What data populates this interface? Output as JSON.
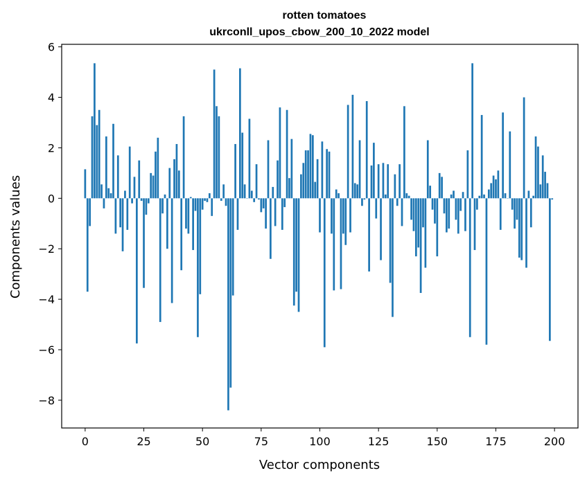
{
  "chart_data": {
    "type": "bar",
    "title": "rotten tomatoes",
    "subtitle": "ukrconll_upos_cbow_200_10_2022 model",
    "xlabel": "Vector components",
    "ylabel": "Components values",
    "xlim": [
      -10,
      210
    ],
    "ylim": [
      -9.1,
      6.1
    ],
    "xticks": [
      0,
      25,
      50,
      75,
      100,
      125,
      150,
      175,
      200
    ],
    "xtick_labels": [
      "0",
      "25",
      "50",
      "75",
      "100",
      "125",
      "150",
      "175",
      "200"
    ],
    "yticks": [
      -8,
      -6,
      -4,
      -2,
      0,
      2,
      4,
      6
    ],
    "ytick_labels": [
      "−8",
      "−6",
      "−4",
      "−2",
      "0",
      "2",
      "4",
      "6"
    ],
    "bar_color": "#1f77b4",
    "grid": false,
    "legend": "none",
    "x": [
      0,
      1,
      2,
      3,
      4,
      5,
      6,
      7,
      8,
      9,
      10,
      11,
      12,
      13,
      14,
      15,
      16,
      17,
      18,
      19,
      20,
      21,
      22,
      23,
      24,
      25,
      26,
      27,
      28,
      29,
      30,
      31,
      32,
      33,
      34,
      35,
      36,
      37,
      38,
      39,
      40,
      41,
      42,
      43,
      44,
      45,
      46,
      47,
      48,
      49,
      50,
      51,
      52,
      53,
      54,
      55,
      56,
      57,
      58,
      59,
      60,
      61,
      62,
      63,
      64,
      65,
      66,
      67,
      68,
      69,
      70,
      71,
      72,
      73,
      74,
      75,
      76,
      77,
      78,
      79,
      80,
      81,
      82,
      83,
      84,
      85,
      86,
      87,
      88,
      89,
      90,
      91,
      92,
      93,
      94,
      95,
      96,
      97,
      98,
      99,
      100,
      101,
      102,
      103,
      104,
      105,
      106,
      107,
      108,
      109,
      110,
      111,
      112,
      113,
      114,
      115,
      116,
      117,
      118,
      119,
      120,
      121,
      122,
      123,
      124,
      125,
      126,
      127,
      128,
      129,
      130,
      131,
      132,
      133,
      134,
      135,
      136,
      137,
      138,
      139,
      140,
      141,
      142,
      143,
      144,
      145,
      146,
      147,
      148,
      149,
      150,
      151,
      152,
      153,
      154,
      155,
      156,
      157,
      158,
      159,
      160,
      161,
      162,
      163,
      164,
      165,
      166,
      167,
      168,
      169,
      170,
      171,
      172,
      173,
      174,
      175,
      176,
      177,
      178,
      179,
      180,
      181,
      182,
      183,
      184,
      185,
      186,
      187,
      188,
      189,
      190,
      191,
      192,
      193,
      194,
      195,
      196,
      197,
      198,
      199
    ],
    "values": [
      1.15,
      -3.7,
      -1.1,
      3.25,
      5.35,
      2.9,
      3.5,
      0.55,
      -0.4,
      2.45,
      0.4,
      0.2,
      2.95,
      -1.4,
      1.7,
      -1.15,
      -2.1,
      0.3,
      -1.25,
      2.05,
      -0.2,
      0.85,
      -5.75,
      1.5,
      -0.1,
      -3.55,
      -0.65,
      -0.2,
      1.0,
      0.9,
      1.85,
      2.4,
      -4.9,
      -0.6,
      0.15,
      -2.0,
      1.2,
      -4.15,
      1.55,
      2.15,
      1.1,
      -2.85,
      3.25,
      -1.2,
      -1.4,
      0.05,
      -2.05,
      -0.5,
      -5.5,
      -3.8,
      -0.45,
      -0.1,
      -0.15,
      0.2,
      -0.7,
      5.1,
      3.65,
      3.25,
      -0.1,
      0.55,
      -0.3,
      -8.4,
      -7.5,
      -3.85,
      2.15,
      -1.25,
      5.15,
      2.6,
      0.55,
      0.0,
      3.15,
      0.3,
      -0.15,
      1.35,
      -0.05,
      -0.55,
      -0.4,
      -1.2,
      2.3,
      -2.4,
      0.45,
      -1.1,
      1.5,
      3.6,
      -1.25,
      -0.35,
      3.5,
      0.8,
      2.35,
      -4.25,
      -3.7,
      -4.5,
      0.95,
      1.4,
      1.9,
      1.9,
      2.55,
      2.5,
      0.65,
      1.55,
      -1.35,
      2.25,
      -5.9,
      1.95,
      1.85,
      -1.4,
      -3.65,
      0.35,
      0.2,
      -3.6,
      -1.4,
      -1.85,
      3.7,
      -1.35,
      4.1,
      0.6,
      0.55,
      2.3,
      -0.3,
      -0.05,
      3.85,
      -2.9,
      1.3,
      2.2,
      -0.8,
      1.35,
      -2.45,
      1.4,
      0.15,
      1.35,
      -3.35,
      -4.7,
      0.95,
      -0.3,
      1.35,
      -1.1,
      3.65,
      0.2,
      0.1,
      -0.85,
      -1.3,
      -2.3,
      -1.95,
      -3.75,
      -1.15,
      -2.75,
      2.3,
      0.5,
      -0.45,
      -1.0,
      -2.3,
      1.0,
      0.85,
      -0.6,
      -1.35,
      -1.2,
      0.15,
      0.3,
      -0.85,
      -1.4,
      -0.5,
      0.25,
      -1.3,
      1.9,
      -5.5,
      5.35,
      -2.05,
      -0.45,
      0.1,
      3.3,
      0.15,
      -5.8,
      0.35,
      0.6,
      0.9,
      0.75,
      1.1,
      -1.25,
      3.4,
      0.2,
      0.0,
      2.65,
      -0.45,
      -1.2,
      -0.85,
      -2.35,
      -2.45,
      4.0,
      -2.75,
      0.3,
      -1.15,
      0.1,
      2.45,
      2.05,
      0.55,
      1.7,
      1.05,
      0.6,
      -5.65,
      -0.05
    ]
  }
}
